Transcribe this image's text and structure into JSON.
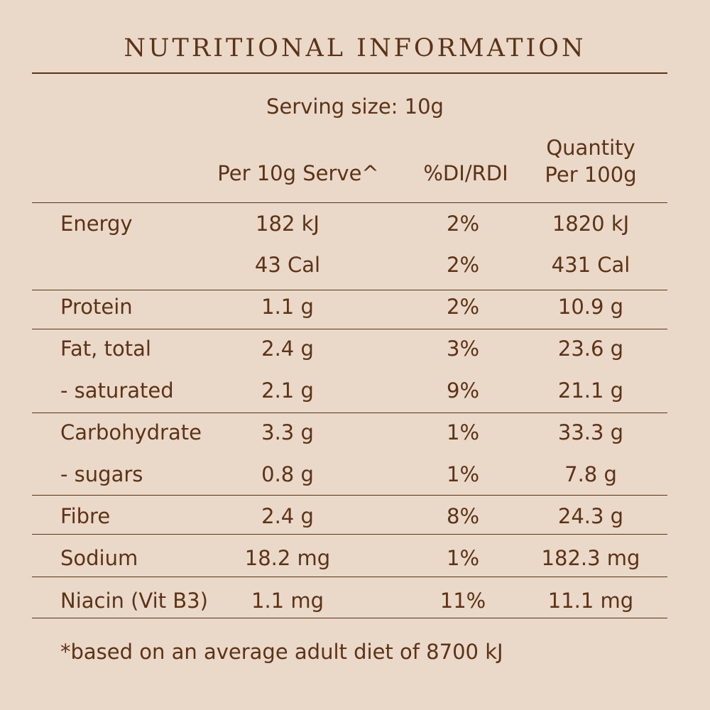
{
  "title": "NUTRITIONAL INFORMATION",
  "serving": "Serving size: 10g",
  "headers": {
    "per_serve": "Per 10g Serve^",
    "di": "%DI/RDI",
    "per100_line1": "Quantity",
    "per100_line2": "Per 100g"
  },
  "rows": [
    {
      "label": "Energy",
      "serve": "182 kJ",
      "di": "2%",
      "per100": "1820 kJ"
    },
    {
      "label": "",
      "serve": "43 Cal",
      "di": "2%",
      "per100": "431 Cal"
    },
    {
      "label": "Protein",
      "serve": "1.1 g",
      "di": "2%",
      "per100": "10.9 g"
    },
    {
      "label": "Fat, total",
      "serve": "2.4 g",
      "di": "3%",
      "per100": "23.6 g"
    },
    {
      "label": " - saturated",
      "serve": "2.1 g",
      "di": "9%",
      "per100": "21.1 g"
    },
    {
      "label": "Carbohydrate",
      "serve": "3.3 g",
      "di": "1%",
      "per100": "33.3 g"
    },
    {
      "label": " - sugars",
      "serve": "0.8 g",
      "di": "1%",
      "per100": "7.8 g"
    },
    {
      "label": "Fibre",
      "serve": "2.4 g",
      "di": "8%",
      "per100": "24.3 g"
    },
    {
      "label": "Sodium",
      "serve": "18.2 mg",
      "di": "1%",
      "per100": "182.3 mg"
    },
    {
      "label": "Niacin (Vit B3)",
      "serve": "1.1 mg",
      "di": "11%",
      "per100": "11.1 mg"
    }
  ],
  "footnote": "*based on an average adult diet of 8700 kJ",
  "colors": {
    "background": "#ead8c8",
    "text": "#5c3317"
  }
}
